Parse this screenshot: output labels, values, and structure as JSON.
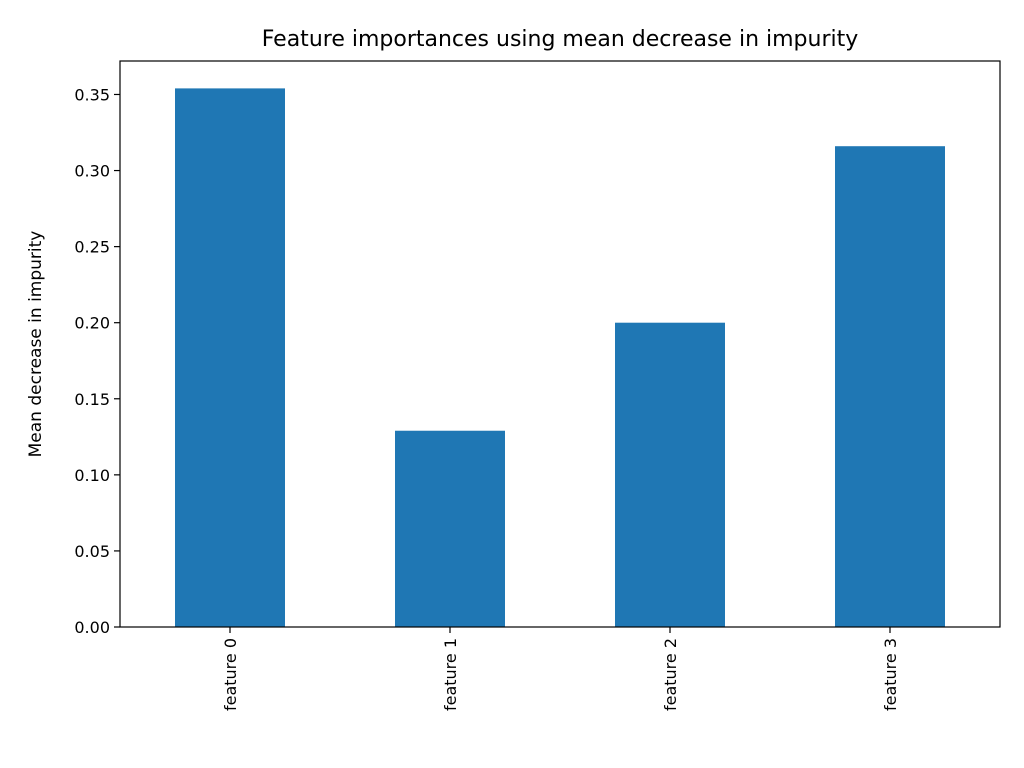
{
  "chart_data": {
    "type": "bar",
    "title": "Feature importances using mean decrease in impurity",
    "xlabel": "",
    "ylabel": "Mean decrease in impurity",
    "categories": [
      "feature 0",
      "feature 1",
      "feature 2",
      "feature 3"
    ],
    "values": [
      0.354,
      0.129,
      0.2,
      0.316
    ],
    "ylim": [
      0,
      0.372
    ],
    "yticks": [
      0.0,
      0.05,
      0.1,
      0.15,
      0.2,
      0.25,
      0.3,
      0.35
    ],
    "ytick_labels": [
      "0.00",
      "0.05",
      "0.10",
      "0.15",
      "0.20",
      "0.25",
      "0.30",
      "0.35"
    ],
    "xtick_rotation": "vertical",
    "grid": false,
    "legend": "none",
    "bar_color": "#1f77b4"
  }
}
